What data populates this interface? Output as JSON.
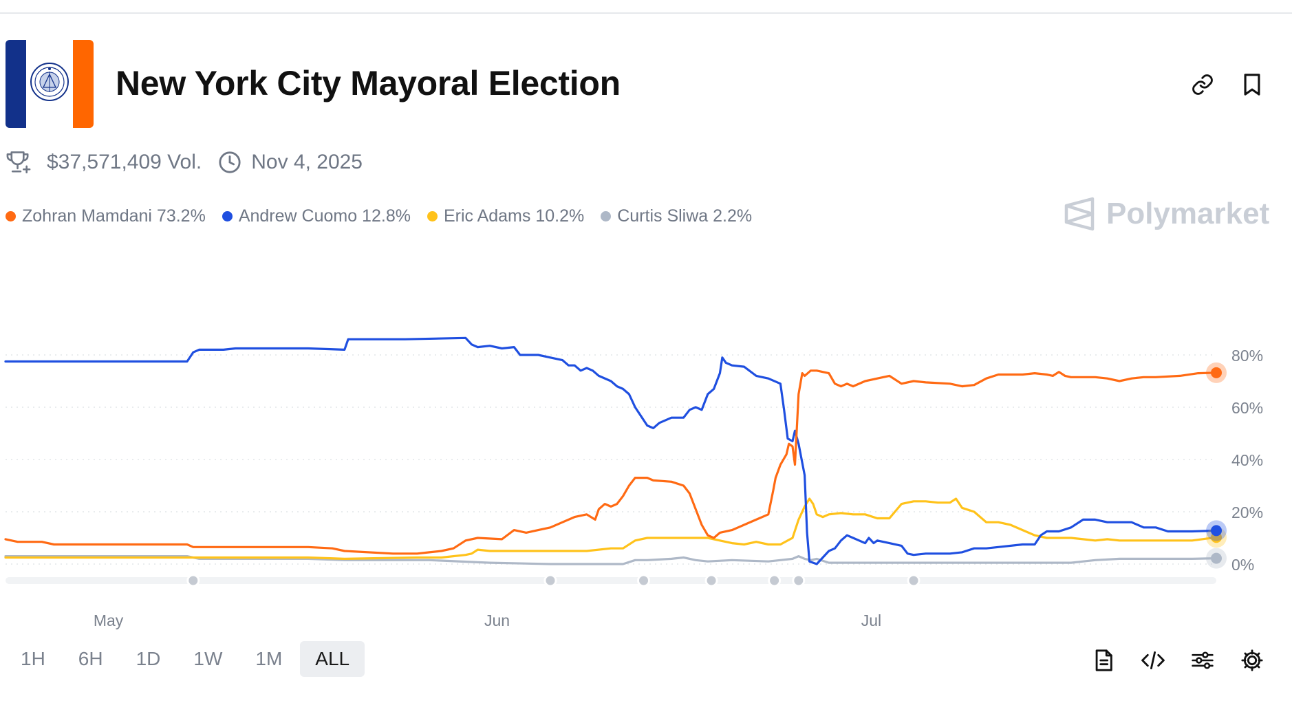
{
  "header": {
    "title": "New York City Mayoral Election",
    "volume": "$37,571,409 Vol.",
    "end_date": "Nov 4, 2025",
    "brand": "Polymarket"
  },
  "colors": {
    "mamdani": "#ff6a13",
    "cuomo": "#1f4fe0",
    "adams": "#ffc21a",
    "sliwa": "#aeb8c7",
    "flag_blue": "#12318a",
    "flag_orange": "#ff6600"
  },
  "legend": [
    {
      "name": "Zohran Mamdani",
      "pct": "73.2%",
      "label": "Zohran Mamdani 73.2%",
      "color": "#ff6a13"
    },
    {
      "name": "Andrew Cuomo",
      "pct": "12.8%",
      "label": "Andrew Cuomo 12.8%",
      "color": "#1f4fe0"
    },
    {
      "name": "Eric Adams",
      "pct": "10.2%",
      "label": "Eric Adams 10.2%",
      "color": "#ffc21a"
    },
    {
      "name": "Curtis Sliwa",
      "pct": "2.2%",
      "label": "Curtis Sliwa 2.2%",
      "color": "#aeb8c7"
    }
  ],
  "time_ranges": [
    {
      "label": "1H",
      "active": false
    },
    {
      "label": "6H",
      "active": false
    },
    {
      "label": "1D",
      "active": false
    },
    {
      "label": "1W",
      "active": false
    },
    {
      "label": "1M",
      "active": false
    },
    {
      "label": "ALL",
      "active": true
    }
  ],
  "icons": {
    "header": [
      "link-icon",
      "bookmark-icon"
    ],
    "meta": [
      "trophy-icon",
      "clock-icon"
    ],
    "toolbar": [
      "document-icon",
      "embed-code-icon",
      "sliders-icon",
      "settings-gear-icon"
    ]
  },
  "chart_data": {
    "type": "line",
    "title": "",
    "xlabel": "",
    "ylabel": "",
    "x_domain": [
      0,
      100
    ],
    "ylim": [
      0,
      100
    ],
    "yticks": [
      0,
      20,
      40,
      60,
      80
    ],
    "ytick_labels": [
      "0%",
      "20%",
      "40%",
      "60%",
      "80%"
    ],
    "xticks": [
      {
        "x": 8.5,
        "label": "May"
      },
      {
        "x": 40.6,
        "label": "Jun"
      },
      {
        "x": 71.5,
        "label": "Jul"
      }
    ],
    "event_markers": [
      15.5,
      45,
      52.7,
      58.3,
      63.5,
      65.5,
      75
    ],
    "grid": true,
    "series": [
      {
        "name": "Zohran Mamdani",
        "color": "#ff6a13",
        "points": [
          [
            0,
            9.5
          ],
          [
            1,
            8.5
          ],
          [
            3,
            8.5
          ],
          [
            4,
            7.5
          ],
          [
            10,
            7.5
          ],
          [
            15,
            7.5
          ],
          [
            15.5,
            6.5
          ],
          [
            25,
            6.5
          ],
          [
            27,
            6
          ],
          [
            28,
            5
          ],
          [
            32,
            4
          ],
          [
            34,
            4
          ],
          [
            35,
            4.5
          ],
          [
            36,
            5
          ],
          [
            37,
            6
          ],
          [
            38,
            9
          ],
          [
            39,
            10
          ],
          [
            41,
            9.5
          ],
          [
            42,
            13
          ],
          [
            43,
            12
          ],
          [
            44,
            13
          ],
          [
            45,
            14
          ],
          [
            46,
            16
          ],
          [
            47,
            18
          ],
          [
            48,
            19
          ],
          [
            48.7,
            17
          ],
          [
            49,
            21
          ],
          [
            49.5,
            23
          ],
          [
            50,
            22
          ],
          [
            50.5,
            23
          ],
          [
            51,
            26
          ],
          [
            51.5,
            30
          ],
          [
            52,
            33
          ],
          [
            53,
            33
          ],
          [
            53.5,
            32
          ],
          [
            55,
            31.5
          ],
          [
            56,
            30
          ],
          [
            56.5,
            27
          ],
          [
            57,
            21
          ],
          [
            57.5,
            15
          ],
          [
            58,
            11
          ],
          [
            58.5,
            10
          ],
          [
            59,
            12
          ],
          [
            60,
            13
          ],
          [
            60.5,
            14
          ],
          [
            61,
            15
          ],
          [
            62,
            17
          ],
          [
            63,
            19
          ],
          [
            63.4,
            28
          ],
          [
            63.6,
            33
          ],
          [
            64,
            38
          ],
          [
            64.5,
            42
          ],
          [
            64.7,
            46
          ],
          [
            65,
            45
          ],
          [
            65.2,
            38
          ],
          [
            65.5,
            65
          ],
          [
            65.8,
            73
          ],
          [
            66,
            72
          ],
          [
            66.5,
            74
          ],
          [
            67,
            74
          ],
          [
            68,
            73
          ],
          [
            68.5,
            69
          ],
          [
            69,
            68
          ],
          [
            69.5,
            69
          ],
          [
            70,
            68
          ],
          [
            71,
            70
          ],
          [
            72,
            71
          ],
          [
            73,
            72
          ],
          [
            74,
            69
          ],
          [
            75,
            70
          ],
          [
            76,
            69.5
          ],
          [
            78,
            69
          ],
          [
            79,
            68
          ],
          [
            80,
            68.5
          ],
          [
            81,
            71
          ],
          [
            82,
            72.5
          ],
          [
            83,
            72.5
          ],
          [
            84,
            72.5
          ],
          [
            85,
            73
          ],
          [
            86,
            72.5
          ],
          [
            86.5,
            72
          ],
          [
            87,
            73.5
          ],
          [
            87.5,
            72
          ],
          [
            88,
            71.5
          ],
          [
            90,
            71.5
          ],
          [
            91,
            71
          ],
          [
            92,
            70
          ],
          [
            93,
            71
          ],
          [
            94,
            71.5
          ],
          [
            95,
            71.5
          ],
          [
            97,
            72
          ],
          [
            98.5,
            73
          ],
          [
            100,
            73.2
          ]
        ]
      },
      {
        "name": "Andrew Cuomo",
        "color": "#1f4fe0",
        "points": [
          [
            0,
            77.5
          ],
          [
            15,
            77.5
          ],
          [
            15.5,
            81
          ],
          [
            16,
            82
          ],
          [
            18,
            82
          ],
          [
            19,
            82.5
          ],
          [
            25,
            82.5
          ],
          [
            28,
            82
          ],
          [
            28.3,
            86
          ],
          [
            33,
            86
          ],
          [
            38,
            86.5
          ],
          [
            38.5,
            84
          ],
          [
            39,
            83
          ],
          [
            40,
            83.5
          ],
          [
            41,
            82.5
          ],
          [
            42,
            83
          ],
          [
            42.5,
            80
          ],
          [
            43,
            80
          ],
          [
            44,
            80
          ],
          [
            45,
            79
          ],
          [
            46,
            78
          ],
          [
            46.5,
            76
          ],
          [
            47,
            76
          ],
          [
            47.5,
            74
          ],
          [
            48,
            75
          ],
          [
            48.5,
            74
          ],
          [
            49,
            72
          ],
          [
            50,
            70
          ],
          [
            50.5,
            68
          ],
          [
            51,
            67
          ],
          [
            51.5,
            65
          ],
          [
            52,
            60
          ],
          [
            53,
            53
          ],
          [
            53.5,
            52
          ],
          [
            54,
            54
          ],
          [
            55,
            56
          ],
          [
            56,
            56
          ],
          [
            56.5,
            59
          ],
          [
            57,
            60
          ],
          [
            57.5,
            59
          ],
          [
            58,
            65
          ],
          [
            58.5,
            67
          ],
          [
            59,
            73
          ],
          [
            59.2,
            79
          ],
          [
            59.5,
            77
          ],
          [
            60,
            76
          ],
          [
            61,
            75.5
          ],
          [
            62,
            72
          ],
          [
            63,
            71
          ],
          [
            64,
            69
          ],
          [
            64.3,
            59
          ],
          [
            64.6,
            48
          ],
          [
            65,
            47
          ],
          [
            65.2,
            51
          ],
          [
            65.5,
            46
          ],
          [
            66,
            34
          ],
          [
            66.2,
            12
          ],
          [
            66.4,
            1
          ],
          [
            67,
            0
          ],
          [
            68,
            5
          ],
          [
            68.5,
            6
          ],
          [
            69,
            9
          ],
          [
            69.5,
            11
          ],
          [
            70,
            10
          ],
          [
            70.5,
            9
          ],
          [
            71,
            8
          ],
          [
            71.3,
            10
          ],
          [
            71.7,
            8
          ],
          [
            72,
            9
          ],
          [
            73,
            8
          ],
          [
            74,
            7
          ],
          [
            74.5,
            4
          ],
          [
            75,
            3.5
          ],
          [
            76,
            4
          ],
          [
            78,
            4
          ],
          [
            79,
            4.5
          ],
          [
            80,
            6
          ],
          [
            81,
            6
          ],
          [
            82,
            6.5
          ],
          [
            84,
            7.5
          ],
          [
            85,
            7.5
          ],
          [
            85.5,
            11
          ],
          [
            86,
            12.5
          ],
          [
            87,
            12.5
          ],
          [
            88,
            14
          ],
          [
            89,
            17
          ],
          [
            90,
            17
          ],
          [
            91,
            16
          ],
          [
            93,
            16
          ],
          [
            94,
            14
          ],
          [
            95,
            14
          ],
          [
            96,
            12.5
          ],
          [
            98,
            12.5
          ],
          [
            100,
            12.8
          ]
        ]
      },
      {
        "name": "Eric Adams",
        "color": "#ffc21a",
        "points": [
          [
            0,
            2.5
          ],
          [
            8,
            2.5
          ],
          [
            15,
            2.5
          ],
          [
            20,
            2.5
          ],
          [
            25,
            2.5
          ],
          [
            28,
            2
          ],
          [
            34,
            2.5
          ],
          [
            36,
            2.5
          ],
          [
            38,
            3.5
          ],
          [
            38.5,
            4
          ],
          [
            39,
            5.5
          ],
          [
            40,
            5
          ],
          [
            45,
            5
          ],
          [
            48,
            5
          ],
          [
            50,
            6
          ],
          [
            51,
            6
          ],
          [
            52,
            9
          ],
          [
            53,
            10
          ],
          [
            54,
            10
          ],
          [
            56,
            10
          ],
          [
            58,
            10
          ],
          [
            59,
            9
          ],
          [
            60,
            8
          ],
          [
            61,
            7.5
          ],
          [
            62,
            8.5
          ],
          [
            63,
            7.5
          ],
          [
            64,
            7.5
          ],
          [
            65,
            10
          ],
          [
            65.5,
            17
          ],
          [
            66,
            22
          ],
          [
            66.4,
            25
          ],
          [
            66.7,
            23
          ],
          [
            67,
            19
          ],
          [
            67.5,
            18
          ],
          [
            68,
            19
          ],
          [
            69,
            19.5
          ],
          [
            70,
            19
          ],
          [
            71,
            19
          ],
          [
            72,
            17.5
          ],
          [
            73,
            17.5
          ],
          [
            74,
            23
          ],
          [
            75,
            24
          ],
          [
            76,
            24
          ],
          [
            77,
            23.5
          ],
          [
            78,
            23.5
          ],
          [
            78.5,
            25
          ],
          [
            79,
            21.5
          ],
          [
            80,
            20
          ],
          [
            81,
            16
          ],
          [
            82,
            16
          ],
          [
            83,
            15
          ],
          [
            84,
            13
          ],
          [
            85,
            11
          ],
          [
            86,
            10
          ],
          [
            87,
            10
          ],
          [
            88,
            10
          ],
          [
            89,
            9.5
          ],
          [
            90,
            9
          ],
          [
            91,
            9.5
          ],
          [
            92,
            9
          ],
          [
            94,
            9
          ],
          [
            96,
            9
          ],
          [
            98,
            9
          ],
          [
            100,
            10.2
          ]
        ]
      },
      {
        "name": "Curtis Sliwa",
        "color": "#aeb8c7",
        "points": [
          [
            0,
            3
          ],
          [
            15,
            3
          ],
          [
            16,
            2
          ],
          [
            20,
            2
          ],
          [
            25,
            2
          ],
          [
            28,
            1.5
          ],
          [
            35,
            1.5
          ],
          [
            40,
            0.5
          ],
          [
            45,
            0
          ],
          [
            50,
            0
          ],
          [
            51,
            0
          ],
          [
            52,
            1.5
          ],
          [
            53,
            1.5
          ],
          [
            55,
            2
          ],
          [
            56,
            2.5
          ],
          [
            57,
            1.5
          ],
          [
            58,
            1
          ],
          [
            60,
            1.5
          ],
          [
            63,
            1
          ],
          [
            64,
            1.5
          ],
          [
            65,
            2
          ],
          [
            65.5,
            3
          ],
          [
            66,
            2
          ],
          [
            66.5,
            1.5
          ],
          [
            67,
            2
          ],
          [
            68,
            0.5
          ],
          [
            70,
            0.5
          ],
          [
            75,
            0.5
          ],
          [
            80,
            0.5
          ],
          [
            85,
            0.5
          ],
          [
            88,
            0.5
          ],
          [
            89,
            1
          ],
          [
            90,
            1.5
          ],
          [
            92,
            2
          ],
          [
            95,
            2
          ],
          [
            98,
            2
          ],
          [
            100,
            2.2
          ]
        ]
      }
    ]
  }
}
